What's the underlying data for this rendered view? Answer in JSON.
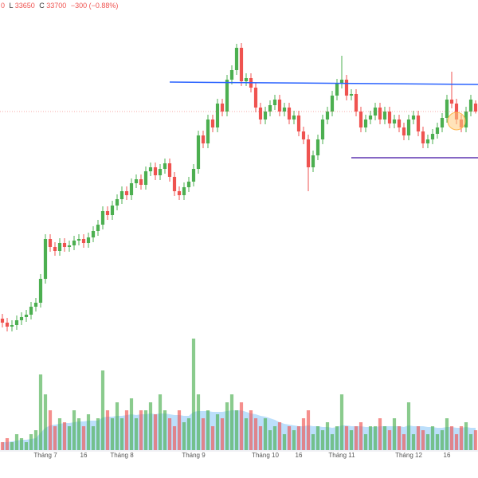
{
  "chart_data": {
    "type": "candlestick",
    "header": [
      "0",
      "L",
      "33650",
      "C",
      "33700",
      "−300 (−0.88%)"
    ],
    "up_color": "#4caf50",
    "down_color": "#ef5350",
    "volume_ma_color": "#90caf9",
    "ylim": [
      24500,
      36500
    ],
    "y2lim": [
      0,
      14
    ],
    "xlim": [
      -0.5,
      99.5
    ],
    "xticks": [
      {
        "value": 9,
        "label": "Tháng 7"
      },
      {
        "value": 17,
        "label": "16"
      },
      {
        "value": 25,
        "label": "Tháng 8"
      },
      {
        "value": 40,
        "label": "Tháng 9"
      },
      {
        "value": 55,
        "label": "Tháng 10"
      },
      {
        "value": 62,
        "label": "16"
      },
      {
        "value": 71,
        "label": "Tháng 11"
      },
      {
        "value": 85,
        "label": "Tháng 12"
      },
      {
        "value": 93,
        "label": "16"
      }
    ],
    "open": [
      28500,
      28400,
      28300,
      28340,
      28460,
      28540,
      28600,
      28800,
      28900,
      29500,
      30500,
      30300,
      30200,
      30400,
      30300,
      30340,
      30460,
      30500,
      30400,
      30540,
      30700,
      30860,
      31200,
      31100,
      31340,
      31500,
      31700,
      31600,
      31900,
      32000,
      31860,
      32200,
      32300,
      32100,
      32260,
      32400,
      32060,
      31700,
      31600,
      31800,
      31940,
      32260,
      33100,
      32900,
      33500,
      33300,
      33900,
      33700,
      34500,
      34740,
      35300,
      34460,
      34540,
      34300,
      33800,
      33500,
      33700,
      33860,
      34000,
      33700,
      33800,
      33500,
      33600,
      33200,
      33000,
      32300,
      32600,
      33000,
      33500,
      33700,
      34100,
      34400,
      34500,
      34100,
      34140,
      33700,
      33300,
      33500,
      33600,
      33800,
      33500,
      33700,
      33400,
      33500,
      33300,
      33100,
      33500,
      33600,
      33200,
      32900,
      33000,
      33140,
      33300,
      33540,
      34000,
      33900,
      33500,
      33300,
      33700,
      33900
    ],
    "high": [
      28620,
      28520,
      28460,
      28580,
      28660,
      28720,
      28920,
      29020,
      29620,
      30620,
      30620,
      30420,
      30520,
      30520,
      30460,
      30580,
      30620,
      30620,
      30660,
      30820,
      30980,
      31320,
      31320,
      31460,
      31620,
      31820,
      31820,
      32020,
      32120,
      32120,
      32320,
      32420,
      32420,
      32380,
      32520,
      32520,
      32180,
      31820,
      31920,
      32060,
      32380,
      33220,
      33220,
      33620,
      33620,
      34020,
      34020,
      34620,
      34860,
      35400,
      35420,
      34660,
      34660,
      34420,
      33920,
      33820,
      33980,
      34120,
      34120,
      33920,
      33920,
      33720,
      33720,
      33320,
      33120,
      32720,
      33120,
      33620,
      33820,
      34220,
      34520,
      35100,
      34620,
      34260,
      34260,
      33820,
      33620,
      33720,
      33920,
      33920,
      33820,
      33820,
      33620,
      33620,
      33420,
      33620,
      33720,
      33720,
      33320,
      33120,
      33260,
      33420,
      33660,
      34120,
      34700,
      34020,
      33620,
      33820,
      34120,
      33980
    ],
    "low": [
      28280,
      28180,
      28180,
      28220,
      28340,
      28420,
      28480,
      28680,
      28780,
      29380,
      30180,
      30080,
      30080,
      30180,
      30180,
      30220,
      30340,
      30280,
      30280,
      30420,
      30580,
      30740,
      30980,
      30980,
      31220,
      31380,
      31480,
      31480,
      31780,
      31740,
      31740,
      32080,
      31980,
      31980,
      32140,
      31940,
      31580,
      31480,
      31480,
      31680,
      31820,
      32140,
      32780,
      32780,
      33180,
      33180,
      33580,
      33580,
      34380,
      34620,
      34340,
      34340,
      34180,
      33680,
      33380,
      33380,
      33580,
      33740,
      33580,
      33580,
      33380,
      33380,
      33080,
      32880,
      31700,
      32180,
      32480,
      32880,
      33380,
      33580,
      33980,
      34280,
      33980,
      33980,
      33580,
      33180,
      33180,
      33380,
      33480,
      33380,
      33380,
      33280,
      33280,
      33180,
      32980,
      32980,
      33380,
      33080,
      32780,
      32780,
      32880,
      33020,
      33180,
      33420,
      33780,
      33380,
      33180,
      33180,
      33580,
      33650
    ],
    "close": [
      28400,
      28300,
      28340,
      28460,
      28540,
      28600,
      28800,
      28900,
      29500,
      30500,
      30300,
      30200,
      30400,
      30300,
      30340,
      30460,
      30500,
      30400,
      30540,
      30700,
      30860,
      31200,
      31100,
      31340,
      31500,
      31700,
      31600,
      31900,
      32000,
      31860,
      32200,
      32300,
      32100,
      32260,
      32400,
      32060,
      31700,
      31600,
      31800,
      31940,
      32260,
      33100,
      32900,
      33500,
      33300,
      33900,
      33700,
      34500,
      34740,
      35300,
      34460,
      34540,
      34300,
      33800,
      33500,
      33700,
      33860,
      34000,
      33700,
      33800,
      33500,
      33600,
      33200,
      33000,
      32300,
      32600,
      33000,
      33500,
      33700,
      34100,
      34400,
      34500,
      34100,
      34140,
      33700,
      33300,
      33500,
      33600,
      33800,
      33500,
      33700,
      33400,
      33500,
      33300,
      33100,
      33500,
      33600,
      33200,
      32900,
      33000,
      33140,
      33300,
      33540,
      34000,
      33900,
      33500,
      33300,
      33700,
      34000,
      33700
    ],
    "volume": [
      1,
      1.5,
      1,
      2,
      1.5,
      1,
      2,
      2.5,
      9.5,
      7,
      5,
      3,
      4,
      3.5,
      3,
      5,
      4,
      3,
      4.5,
      3,
      4,
      10,
      5,
      4,
      6,
      4,
      5,
      6.5,
      4,
      5,
      5,
      6,
      4.5,
      7,
      5,
      4,
      3,
      5,
      3.5,
      4,
      14,
      7,
      4,
      5,
      3,
      4.5,
      4,
      6,
      7,
      5,
      6,
      4,
      5,
      4,
      3,
      4,
      2.5,
      3,
      3.5,
      2,
      3,
      2.5,
      3,
      4,
      5,
      2,
      3,
      2.5,
      3.5,
      2,
      3,
      7,
      3,
      2.5,
      3,
      3.5,
      2,
      3,
      3,
      4,
      3,
      2.5,
      4,
      3,
      2,
      6,
      2,
      3,
      2.5,
      2,
      3,
      2,
      2.5,
      4,
      3,
      2,
      3,
      3.5,
      2,
      2.5
    ],
    "volume_ma": [
      1,
      1,
      1.1,
      1.2,
      1.3,
      1.3,
      1.4,
      1.5,
      2.2,
      2.8,
      3.1,
      3.2,
      3.3,
      3.4,
      3.4,
      3.5,
      3.6,
      3.6,
      3.7,
      3.7,
      3.7,
      4.1,
      4.2,
      4.2,
      4.3,
      4.3,
      4.4,
      4.5,
      4.4,
      4.5,
      4.5,
      4.6,
      4.5,
      4.6,
      4.6,
      4.5,
      4.4,
      4.4,
      4.3,
      4.3,
      4.8,
      4.9,
      4.9,
      4.9,
      4.8,
      4.8,
      4.8,
      4.9,
      5,
      5,
      5,
      4.8,
      4.6,
      4.5,
      4.3,
      4.2,
      4,
      3.8,
      3.5,
      3.3,
      3.2,
      3.1,
      3,
      3,
      3.1,
      3,
      3,
      2.9,
      2.9,
      2.8,
      2.9,
      3.1,
      3.1,
      3,
      3,
      3,
      2.9,
      2.9,
      2.9,
      3,
      3,
      3,
      3,
      3,
      2.9,
      3.1,
      3,
      3,
      3,
      2.9,
      2.9,
      2.8,
      2.8,
      2.9,
      2.9,
      2.8,
      2.8,
      2.9,
      2.8,
      2.8
    ],
    "trendlines": [
      {
        "color": "#2962ff",
        "start": [
          35,
          34440
        ],
        "end": [
          100,
          34380
        ]
      },
      {
        "color": "#5e35b1",
        "start": [
          73,
          32540
        ],
        "end": [
          100,
          32540
        ]
      }
    ]
  }
}
